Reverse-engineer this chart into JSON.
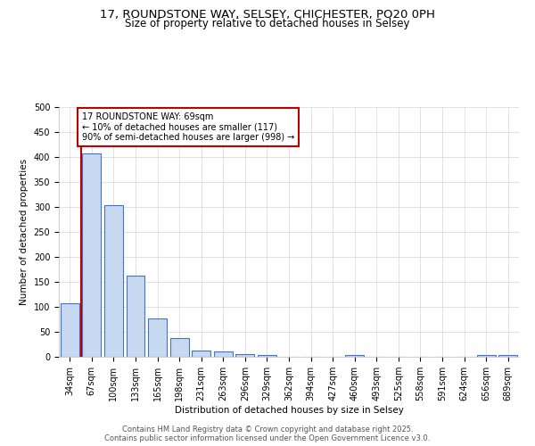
{
  "title_line1": "17, ROUNDSTONE WAY, SELSEY, CHICHESTER, PO20 0PH",
  "title_line2": "Size of property relative to detached houses in Selsey",
  "categories": [
    "34sqm",
    "67sqm",
    "100sqm",
    "133sqm",
    "165sqm",
    "198sqm",
    "231sqm",
    "263sqm",
    "296sqm",
    "329sqm",
    "362sqm",
    "394sqm",
    "427sqm",
    "460sqm",
    "493sqm",
    "525sqm",
    "558sqm",
    "591sqm",
    "624sqm",
    "656sqm",
    "689sqm"
  ],
  "values": [
    107,
    407,
    303,
    163,
    76,
    38,
    13,
    10,
    6,
    3,
    0,
    0,
    0,
    3,
    0,
    0,
    0,
    0,
    0,
    3,
    3
  ],
  "bar_color": "#c6d9f0",
  "bar_edge_color": "#4472c4",
  "bar_edge_width": 0.8,
  "vline_x": 0.5,
  "vline_color": "#c00000",
  "vline_linewidth": 1.5,
  "annotation_text": "17 ROUNDSTONE WAY: 69sqm\n← 10% of detached houses are smaller (117)\n90% of semi-detached houses are larger (998) →",
  "annotation_box_color": "#c00000",
  "xlabel": "Distribution of detached houses by size in Selsey",
  "ylabel": "Number of detached properties",
  "ylim": [
    0,
    500
  ],
  "yticks": [
    0,
    50,
    100,
    150,
    200,
    250,
    300,
    350,
    400,
    450,
    500
  ],
  "grid_color": "#d4d4d4",
  "background_color": "#ffffff",
  "footer_text": "Contains HM Land Registry data © Crown copyright and database right 2025.\nContains public sector information licensed under the Open Government Licence v3.0.",
  "title_fontsize": 9.5,
  "subtitle_fontsize": 8.5,
  "axis_label_fontsize": 7.5,
  "tick_fontsize": 7,
  "annotation_fontsize": 7,
  "footer_fontsize": 6
}
